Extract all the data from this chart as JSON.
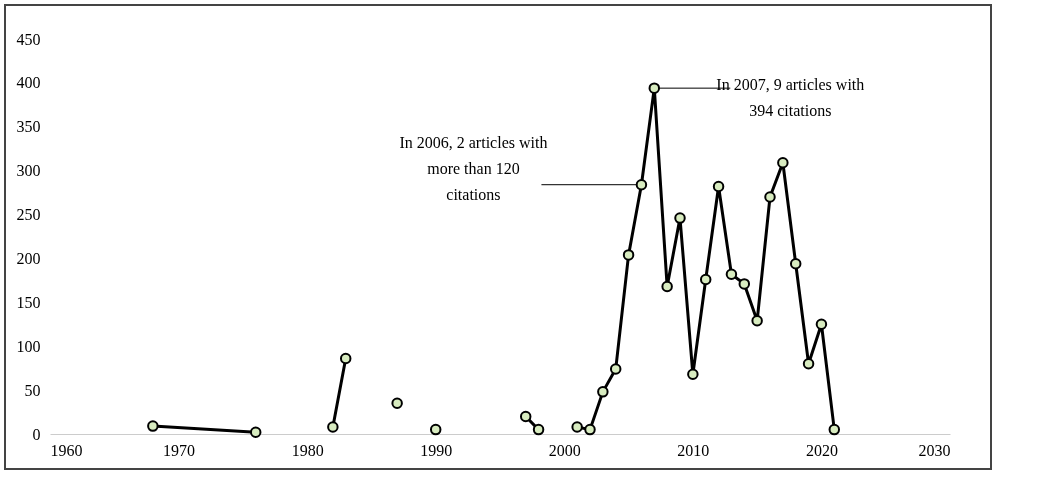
{
  "chart_data": {
    "type": "line",
    "x": [
      1968,
      1976,
      1977,
      1982,
      1983,
      1984,
      1987,
      1988,
      1990,
      1991,
      1997,
      1998,
      1999,
      2001,
      2002,
      2003,
      2004,
      2005,
      2006,
      2007,
      2008,
      2009,
      2010,
      2011,
      2012,
      2013,
      2014,
      2015,
      2016,
      2017,
      2018,
      2019,
      2020,
      2021
    ],
    "series": [
      {
        "color": "#000000",
        "values": [
          9,
          2,
          null,
          8,
          86,
          null,
          35,
          null,
          5,
          null,
          20,
          5,
          null,
          8,
          5,
          48,
          74,
          204,
          284,
          394,
          168,
          246,
          68,
          176,
          282,
          182,
          171,
          129,
          270,
          309,
          194,
          80,
          125,
          5
        ]
      }
    ],
    "xlim": [
      1960,
      2030
    ],
    "xticks": [
      1960,
      1970,
      1980,
      1990,
      2000,
      2010,
      2020,
      2030
    ],
    "ylim": [
      0,
      450
    ],
    "yticks": [
      0,
      50,
      100,
      150,
      200,
      250,
      300,
      350,
      400,
      450
    ],
    "marker": "circle",
    "grid": false,
    "line_style": "solid",
    "annotations": [
      {
        "text": "In 2007, 9 articles with 394 citations",
        "x": 2007,
        "y": 394
      },
      {
        "text": "In 2006, 2 articles with more than 120 citations",
        "x": 2006,
        "y": 284
      }
    ]
  }
}
